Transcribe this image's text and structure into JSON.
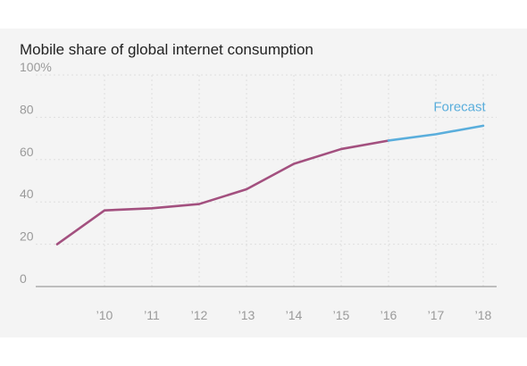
{
  "chart_data": {
    "type": "line",
    "title": "Mobile share of global internet consumption",
    "xlabel": "",
    "ylabel": "",
    "x": [
      2009,
      2010,
      2011,
      2012,
      2013,
      2014,
      2015,
      2016,
      2017,
      2018
    ],
    "x_tick_values": [
      2010,
      2011,
      2012,
      2013,
      2014,
      2015,
      2016,
      2017,
      2018
    ],
    "x_tick_labels": [
      "’10",
      "’11",
      "’12",
      "’13",
      "’14",
      "’15",
      "’16",
      "’17",
      "’18"
    ],
    "xlim": [
      2009,
      2018
    ],
    "y_ticks": [
      0,
      20,
      40,
      60,
      80,
      100
    ],
    "y_tick_labels": [
      "0",
      "20",
      "40",
      "60",
      "80",
      "100%"
    ],
    "ylim": [
      0,
      100
    ],
    "grid": true,
    "series": [
      {
        "kind": "actual",
        "color": "#a3507f",
        "x": [
          2009,
          2010,
          2011,
          2012,
          2013,
          2014,
          2015,
          2016
        ],
        "values": [
          20,
          36,
          37,
          39,
          46,
          58,
          65,
          69
        ]
      },
      {
        "kind": "forecast",
        "color": "#5aaedc",
        "x": [
          2016,
          2017,
          2018
        ],
        "values": [
          69,
          72,
          76
        ]
      }
    ],
    "annotations": [
      {
        "text": "Forecast",
        "x": 2017.5,
        "y": 83,
        "color": "#5aaedc"
      }
    ]
  }
}
